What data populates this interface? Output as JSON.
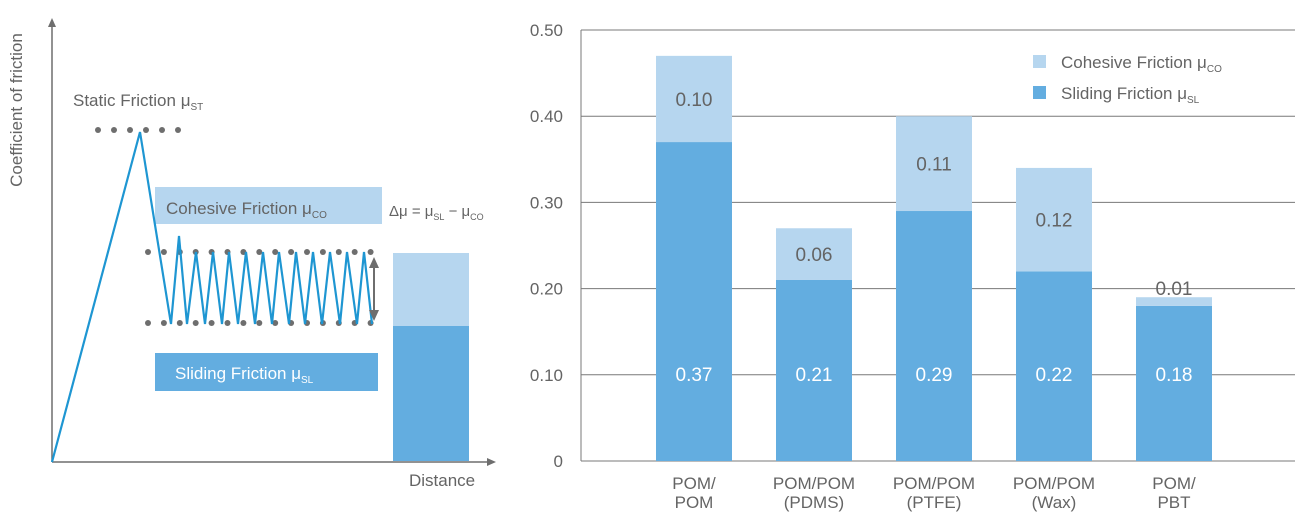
{
  "colors": {
    "sliding": "#63ade0",
    "cohesive": "#b6d6ef",
    "text": "#646464",
    "axis": "#6e6e6e",
    "dots": "#6e6e6e",
    "zigzag": "#1e96d2",
    "grid": "#787878"
  },
  "left_diagram": {
    "ylabel": "Coefficient of friction",
    "xlabel": "Distance",
    "static_label": {
      "main": "Static Friction μ",
      "sub": "ST"
    },
    "cohesive_label": {
      "main": "Cohesive Friction μ",
      "sub": "CO"
    },
    "sliding_label": {
      "main": "Sliding Friction μ",
      "sub": "SL"
    },
    "delta": {
      "prefix": "Δμ = μ",
      "sub1": "SL",
      "minus": " − μ",
      "sub2": "CO"
    }
  },
  "chart_data": {
    "type": "bar",
    "stacked": true,
    "categories": [
      [
        "POM/",
        "POM"
      ],
      [
        "POM/POM",
        "(PDMS)"
      ],
      [
        "POM/POM",
        "(PTFE)"
      ],
      [
        "POM/POM",
        "(Wax)"
      ],
      [
        "POM/",
        "PBT"
      ]
    ],
    "series": [
      {
        "name": "Sliding Friction μSL",
        "label_main": "Sliding Friction μ",
        "label_sub": "SL",
        "values": [
          0.37,
          0.21,
          0.29,
          0.22,
          0.18
        ],
        "labels": [
          "0.37",
          "0.21",
          "0.29",
          "0.22",
          "0.18"
        ]
      },
      {
        "name": "Cohesive Friction μCO",
        "label_main": "Cohesive Friction μ",
        "label_sub": "CO",
        "values": [
          0.1,
          0.06,
          0.11,
          0.12,
          0.01
        ],
        "labels": [
          "0.10",
          "0.06",
          "0.11",
          "0.12",
          "0.01"
        ]
      }
    ],
    "yticks": [
      "0",
      "0.10",
      "0.20",
      "0.30",
      "0.40",
      "0.50"
    ],
    "ylim": [
      0,
      0.5
    ],
    "grid": true,
    "legend_position": "top-right"
  }
}
